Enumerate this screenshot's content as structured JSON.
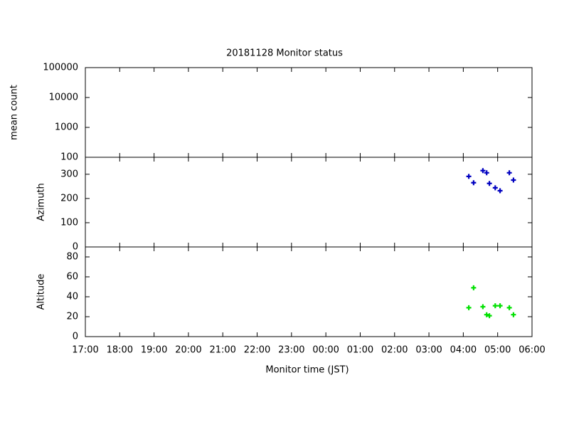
{
  "chart_data": [
    {
      "type": "scatter",
      "title": "20181128 Monitor status",
      "ylabel": "mean count",
      "log_y": true,
      "ylim": [
        100,
        100000
      ],
      "yticks": [
        100,
        1000,
        10000,
        100000
      ],
      "x": [],
      "values": [],
      "color": "#0000c0"
    },
    {
      "type": "scatter",
      "ylabel": "Azimuth",
      "ylim": [
        0,
        370
      ],
      "yticks": [
        0,
        100,
        200,
        300
      ],
      "x": [
        28.16,
        28.3,
        28.57,
        28.68,
        28.76,
        28.93,
        29.07,
        29.34,
        29.46
      ],
      "values": [
        291,
        265,
        315,
        306,
        262,
        244,
        232,
        306,
        276
      ],
      "color": "#0000c0"
    },
    {
      "type": "scatter",
      "ylabel": "Altitude",
      "xlabel": "Monitor time (JST)",
      "ylim": [
        0,
        90
      ],
      "yticks": [
        0,
        20,
        40,
        60,
        80
      ],
      "x": [
        28.16,
        28.3,
        28.57,
        28.68,
        28.76,
        28.93,
        29.07,
        29.34,
        29.46
      ],
      "values": [
        29,
        49,
        30,
        22,
        21,
        31,
        31,
        29,
        22
      ],
      "color": "#00e000",
      "xlim": [
        17,
        30
      ],
      "xticks": [
        {
          "value": 17,
          "label": "17:00"
        },
        {
          "value": 18,
          "label": "18:00"
        },
        {
          "value": 19,
          "label": "19:00"
        },
        {
          "value": 20,
          "label": "20:00"
        },
        {
          "value": 21,
          "label": "21:00"
        },
        {
          "value": 22,
          "label": "22:00"
        },
        {
          "value": 23,
          "label": "23:00"
        },
        {
          "value": 24,
          "label": "00:00"
        },
        {
          "value": 25,
          "label": "01:00"
        },
        {
          "value": 26,
          "label": "02:00"
        },
        {
          "value": 27,
          "label": "03:00"
        },
        {
          "value": 28,
          "label": "04:00"
        },
        {
          "value": 29,
          "label": "05:00"
        },
        {
          "value": 30,
          "label": "06:00"
        }
      ]
    }
  ]
}
